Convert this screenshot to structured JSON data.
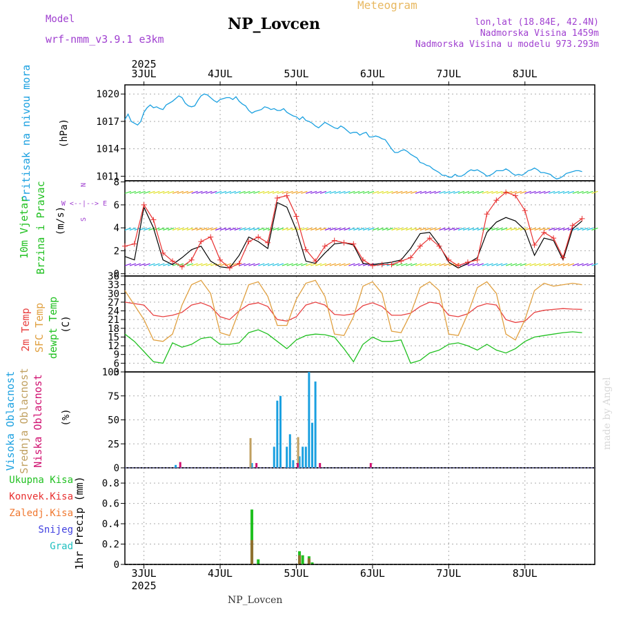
{
  "header": {
    "title": "NP_Lovcen",
    "subtitle": "Meteogram",
    "model_label": "Model",
    "model_name": "wrf-nmm_v3.9.1  e3km",
    "location": "lon,lat (18.84E, 42.4N)",
    "altitude": "Nadmorska Visina 1459m",
    "model_altitude": "Nadmorska Visina u modelu 973.293m",
    "footer_title": "NP_Lovcen",
    "credit": "made by Angel"
  },
  "colors": {
    "title": "#000000",
    "subtitle": "#e8b860",
    "model": "#a040d0",
    "pressure": "#1aa0e0",
    "wind_label": "#20c020",
    "wind_black": "#000000",
    "wind_red": "#e83030",
    "temp2m": "#e84040",
    "sfc": "#e0a040",
    "dewpt": "#20c020",
    "cloud_high": "#1aa0e0",
    "cloud_mid": "#c0a060",
    "cloud_low": "#d01070",
    "precip_total": "#20c020",
    "precip_conv": "#e83030",
    "precip_frozen": "#f07830",
    "precip_snow": "#4040e0",
    "precip_grad": "#20c0c0",
    "grid": "#aaaaaa",
    "credit": "#d8d8d8"
  },
  "chart_data": [
    {
      "type": "line",
      "id": "pressure",
      "title": "Pritisak na nivou mora",
      "ylabel": "(hPa)",
      "ylim": [
        1010.5,
        1021
      ],
      "yticks": [
        1011,
        1014,
        1017,
        1020
      ],
      "x_hours": [
        0,
        1,
        2,
        3,
        4,
        5,
        6,
        7,
        8,
        9,
        10,
        11,
        12,
        13,
        14,
        15,
        16,
        17,
        18,
        19,
        20,
        21,
        22,
        23,
        24,
        25,
        26,
        27,
        28,
        29,
        30,
        31,
        32,
        33,
        34,
        35,
        36,
        37,
        38,
        39,
        40,
        41,
        42,
        43,
        44,
        45,
        46,
        47,
        48,
        49,
        50,
        51,
        52,
        53,
        54,
        55,
        56,
        57,
        58,
        59,
        60,
        61,
        62,
        63,
        64,
        65,
        66,
        67,
        68,
        69,
        70,
        71,
        72,
        73,
        74,
        75,
        76,
        77,
        78,
        79,
        80,
        81,
        82,
        83,
        84,
        85,
        86,
        87,
        88,
        89,
        90,
        91,
        92,
        93,
        94,
        95,
        96,
        97,
        98,
        99,
        100,
        101,
        102,
        103,
        104,
        105,
        106,
        107,
        108,
        109,
        110,
        111,
        112,
        113,
        114,
        115,
        116,
        117,
        118,
        119,
        120,
        121,
        122,
        123,
        124,
        125,
        126,
        127,
        128,
        129,
        130,
        131,
        132,
        133,
        134,
        135,
        136,
        137,
        138,
        139,
        140,
        141,
        142,
        143,
        144
      ],
      "series": [
        {
          "name": "MSLP",
          "values": [
            1017.2,
            1017.8,
            1017.0,
            1016.8,
            1016.6,
            1017.0,
            1018.0,
            1018.5,
            1018.8,
            1018.5,
            1018.6,
            1018.4,
            1018.3,
            1018.8,
            1019.0,
            1019.2,
            1019.5,
            1019.8,
            1019.6,
            1019.0,
            1018.7,
            1018.6,
            1018.7,
            1019.3,
            1019.8,
            1020.0,
            1019.9,
            1019.6,
            1019.3,
            1019.1,
            1019.4,
            1019.5,
            1019.6,
            1019.6,
            1019.4,
            1019.7,
            1019.2,
            1018.9,
            1018.7,
            1018.2,
            1017.9,
            1018.1,
            1018.2,
            1018.3,
            1018.6,
            1018.5,
            1018.3,
            1018.4,
            1018.2,
            1018.2,
            1018.4,
            1018.0,
            1017.8,
            1017.6,
            1017.5,
            1017.2,
            1017.5,
            1017.1,
            1017.0,
            1016.8,
            1016.5,
            1016.3,
            1016.6,
            1016.9,
            1016.7,
            1016.5,
            1016.3,
            1016.2,
            1016.5,
            1016.3,
            1016.0,
            1015.7,
            1015.8,
            1015.8,
            1015.5,
            1015.7,
            1015.8,
            1015.3,
            1015.3,
            1015.4,
            1015.3,
            1015.1,
            1015.0,
            1014.5,
            1014.0,
            1013.6,
            1013.6,
            1013.8,
            1013.9,
            1013.7,
            1013.4,
            1013.2,
            1013.0,
            1012.5,
            1012.4,
            1012.2,
            1012.1,
            1011.8,
            1011.6,
            1011.4,
            1011.1,
            1011.1,
            1010.9,
            1010.9,
            1011.2,
            1011.0,
            1011.0,
            1011.2,
            1011.5,
            1011.7,
            1011.6,
            1011.7,
            1011.5,
            1011.3,
            1011.0,
            1011.1,
            1011.3,
            1011.6,
            1011.6,
            1011.6,
            1011.8,
            1011.6,
            1011.3,
            1011.1,
            1011.2,
            1011.1,
            1011.3,
            1011.6,
            1011.7,
            1011.9,
            1011.7,
            1011.4,
            1011.4,
            1011.3,
            1011.2,
            1010.9,
            1010.7,
            1010.8,
            1011.0,
            1011.3,
            1011.4,
            1011.5,
            1011.6,
            1011.6,
            1011.5
          ]
        }
      ]
    },
    {
      "type": "line",
      "id": "wind",
      "title": "10m Vjetar",
      "title2": "Brzina i Pravac",
      "ylabel": "(m/s)",
      "compass_n": "N",
      "compass_we": "W <--|--> E",
      "compass_s": "S",
      "ylim": [
        -0.2,
        8.1
      ],
      "yticks": [
        0,
        2,
        4,
        6,
        8
      ],
      "x_hours": [
        0,
        3,
        6,
        9,
        12,
        15,
        18,
        21,
        24,
        27,
        30,
        33,
        36,
        39,
        42,
        45,
        48,
        51,
        54,
        57,
        60,
        63,
        66,
        69,
        72,
        75,
        78,
        81,
        84,
        87,
        90,
        93,
        96,
        99,
        102,
        105,
        108,
        111,
        114,
        117,
        120,
        123,
        126,
        129,
        132,
        135,
        138,
        141,
        144
      ],
      "series": [
        {
          "name": "Brzina 10m",
          "values": [
            1.5,
            1.2,
            5.8,
            4.0,
            1.2,
            0.8,
            1.4,
            2.1,
            2.4,
            1.1,
            0.6,
            0.5,
            1.6,
            3.2,
            2.8,
            2.2,
            6.2,
            5.8,
            3.8,
            1.1,
            0.9,
            1.8,
            2.6,
            2.7,
            2.5,
            0.9,
            0.8,
            0.9,
            1.0,
            1.2,
            2.2,
            3.5,
            3.6,
            2.5,
            1.0,
            0.5,
            0.9,
            1.4,
            3.6,
            4.5,
            4.9,
            4.6,
            3.8,
            1.6,
            3.1,
            2.9,
            1.2,
            3.9,
            4.6
          ]
        },
        {
          "name": "Udari",
          "values": [
            2.4,
            2.6,
            6.0,
            4.7,
            1.8,
            1.1,
            0.6,
            1.2,
            2.8,
            3.2,
            1.2,
            0.5,
            0.9,
            2.8,
            3.2,
            2.7,
            6.6,
            6.8,
            5.0,
            2.1,
            1.1,
            2.4,
            2.9,
            2.7,
            2.6,
            1.2,
            0.7,
            0.8,
            0.8,
            1.1,
            1.4,
            2.4,
            3.1,
            2.4,
            1.2,
            0.7,
            1.0,
            1.2,
            5.2,
            6.4,
            7.1,
            6.8,
            5.5,
            2.5,
            3.6,
            3.1,
            1.4,
            4.2,
            4.8
          ]
        }
      ]
    },
    {
      "type": "line",
      "id": "temperature",
      "title": "2m Temp",
      "title2": "SFC Temp",
      "title3": "dewpt Temp",
      "ylabel": "(C)",
      "ylim": [
        3,
        36
      ],
      "yticks": [
        3,
        6,
        9,
        12,
        15,
        18,
        21,
        24,
        27,
        30,
        33,
        36
      ],
      "x_hours": [
        0,
        3,
        6,
        9,
        12,
        15,
        18,
        21,
        24,
        27,
        30,
        33,
        36,
        39,
        42,
        45,
        48,
        51,
        54,
        57,
        60,
        63,
        66,
        69,
        72,
        75,
        78,
        81,
        84,
        87,
        90,
        93,
        96,
        99,
        102,
        105,
        108,
        111,
        114,
        117,
        120,
        123,
        126,
        129,
        132,
        135,
        138,
        141,
        144
      ],
      "series": [
        {
          "name": "2m Temp",
          "values": [
            27,
            26.5,
            26,
            22.5,
            22,
            22.5,
            23.5,
            26,
            26.8,
            25.5,
            22,
            21,
            24,
            26.2,
            26.8,
            25.5,
            21,
            20.5,
            22,
            26,
            27,
            26,
            22.8,
            22.5,
            23,
            25.8,
            26.8,
            25.5,
            22.5,
            22.5,
            23.2,
            25.5,
            27,
            26.5,
            22.5,
            22,
            23,
            25.5,
            26.5,
            26,
            21,
            20,
            20.5,
            23.5,
            24.2,
            24.5,
            24.8,
            24.6,
            24.5
          ]
        },
        {
          "name": "SFC Temp",
          "values": [
            31,
            26,
            21,
            14,
            13.5,
            16,
            26,
            33,
            34.5,
            30,
            16.5,
            15.5,
            24,
            33,
            34,
            29,
            19,
            19,
            28,
            33.5,
            34.5,
            29,
            16,
            15.5,
            22,
            32.5,
            34,
            30,
            17,
            16.5,
            23,
            32,
            34,
            31,
            16,
            15.5,
            23,
            32,
            34,
            30,
            16,
            14,
            21,
            31,
            33.5,
            32.5,
            33,
            33.5,
            33
          ]
        },
        {
          "name": "dewpt Temp",
          "values": [
            16,
            13.5,
            10,
            6.5,
            6,
            13,
            11.5,
            12.5,
            14.5,
            15,
            12.5,
            12.5,
            13,
            16.5,
            17.5,
            16,
            13.5,
            11,
            14,
            15.5,
            16,
            15.8,
            15,
            11,
            6.5,
            12.5,
            15,
            13.5,
            13.5,
            14,
            6,
            7,
            9.5,
            10.5,
            12.5,
            13,
            12,
            10.5,
            12.5,
            10.5,
            9.5,
            11,
            13.5,
            15,
            15.5,
            16,
            16.5,
            16.8,
            16.5
          ]
        }
      ]
    },
    {
      "type": "bar",
      "id": "clouds",
      "title": "Visoka Oblacnost",
      "title2": "Srednja Oblacnost",
      "title3": "Niska Oblacnost",
      "ylabel": "(%)",
      "ylim": [
        0,
        100
      ],
      "yticks": [
        0,
        25,
        50,
        75,
        100
      ],
      "series": [
        {
          "name": "Visoka Oblacnost",
          "x_hours": [
            16,
            40,
            47,
            48,
            49,
            51,
            52,
            53,
            55,
            56,
            57,
            58,
            59,
            60
          ],
          "values": [
            3,
            5,
            22,
            70,
            75,
            22,
            35,
            8,
            12,
            22,
            22,
            100,
            47,
            90
          ]
        },
        {
          "name": "Srednja Oblacnost",
          "x_hours": [
            40,
            55
          ],
          "values": [
            31,
            32
          ]
        },
        {
          "name": "Niska Oblacnost",
          "x_hours": [
            17,
            41,
            54,
            61,
            77
          ],
          "values": [
            6,
            5,
            5,
            5,
            5
          ]
        }
      ]
    },
    {
      "type": "bar",
      "id": "precip",
      "title": "Ukupna Kisa",
      "title2": "Konvek.Kisa",
      "title3": "Zaledj.Kisa",
      "title4": "Snijeg",
      "title5": "Grad",
      "ylabel": "1hr Precip (mm)",
      "ylim": [
        0,
        0.95
      ],
      "yticks": [
        0,
        0.2,
        0.4,
        0.6,
        0.8
      ],
      "series": [
        {
          "name": "Ukupna Kisa",
          "x_hours": [
            40,
            42,
            55,
            56,
            58,
            59
          ],
          "values": [
            0.54,
            0.05,
            0.13,
            0.09,
            0.08,
            0.02
          ]
        },
        {
          "name": "Konvek.Kisa",
          "x_hours": [
            40,
            55,
            58
          ],
          "values": [
            0.24,
            0.09,
            0.06
          ]
        }
      ]
    },
    {
      "type": "axis",
      "id": "time_axis",
      "year": "2025",
      "day_labels": [
        "3JUL",
        "4JUL",
        "5JUL",
        "6JUL",
        "7JUL",
        "8JUL"
      ],
      "day_hours": [
        6,
        30,
        54,
        78,
        102,
        126
      ],
      "range_hours": [
        0,
        148
      ]
    }
  ]
}
